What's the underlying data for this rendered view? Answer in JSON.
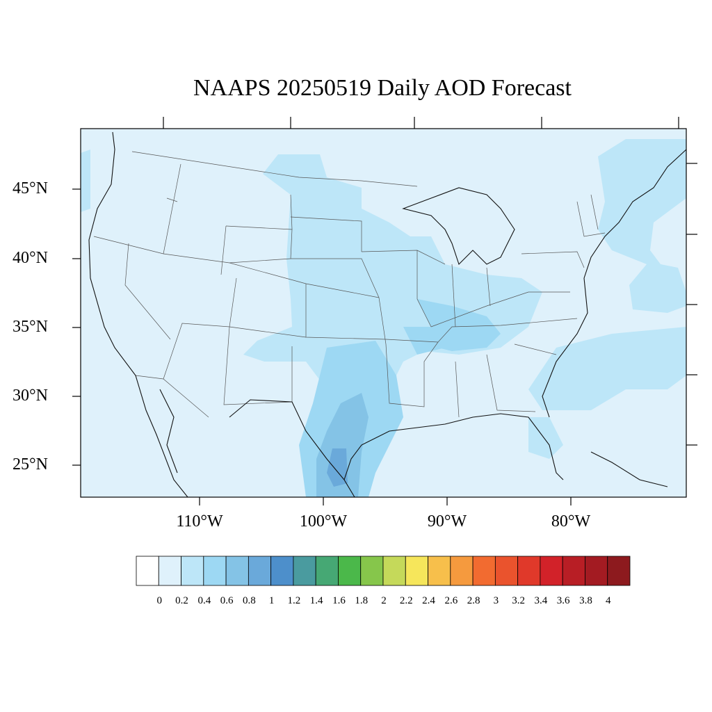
{
  "title": "NAAPS 20250519 Daily AOD Forecast",
  "map": {
    "region": "Contiguous United States",
    "lon_range": [
      -119,
      -71
    ],
    "lat_range": [
      22.8,
      49.5
    ],
    "projection": "cylindrical equidistant",
    "background_value": 0.1,
    "lat_labels": [
      "45°N",
      "40°N",
      "35°N",
      "30°N",
      "25°N"
    ],
    "lat_values": [
      45,
      40,
      35,
      30,
      25
    ],
    "lon_labels": [
      "110°W",
      "100°W",
      "90°W",
      "80°W"
    ],
    "lon_values": [
      -110,
      -100,
      -90,
      -80
    ],
    "aod_features": [
      {
        "region": "South Texas plume",
        "level": "0.8-1.0"
      },
      {
        "region": "Texas / Gulf coast",
        "level": "0.6-0.8"
      },
      {
        "region": "Central Plains",
        "level": "0.2-0.4"
      },
      {
        "region": "Tennessee Valley",
        "level": "0.4-0.6"
      },
      {
        "region": "Atlantic offshore",
        "level": "0.2-0.4"
      }
    ]
  },
  "colorbar": {
    "labels": [
      "0",
      "0.2",
      "0.4",
      "0.6",
      "0.8",
      "1",
      "1.2",
      "1.4",
      "1.6",
      "1.8",
      "2",
      "2.2",
      "2.4",
      "2.6",
      "2.8",
      "3",
      "3.2",
      "3.4",
      "3.6",
      "3.8",
      "4"
    ],
    "colors": [
      "#ffffff",
      "#dff1fb",
      "#bde6f8",
      "#9dd8f3",
      "#84c3e6",
      "#6aa9da",
      "#4d8fcb",
      "#4a9b9f",
      "#46a874",
      "#4bb84a",
      "#86c64b",
      "#c5d95a",
      "#f6e65b",
      "#f7bf4b",
      "#f59a3e",
      "#f26b30",
      "#ea532d",
      "#e0392a",
      "#d22229",
      "#b81e25",
      "#a31b22",
      "#8d1a1e"
    ]
  }
}
